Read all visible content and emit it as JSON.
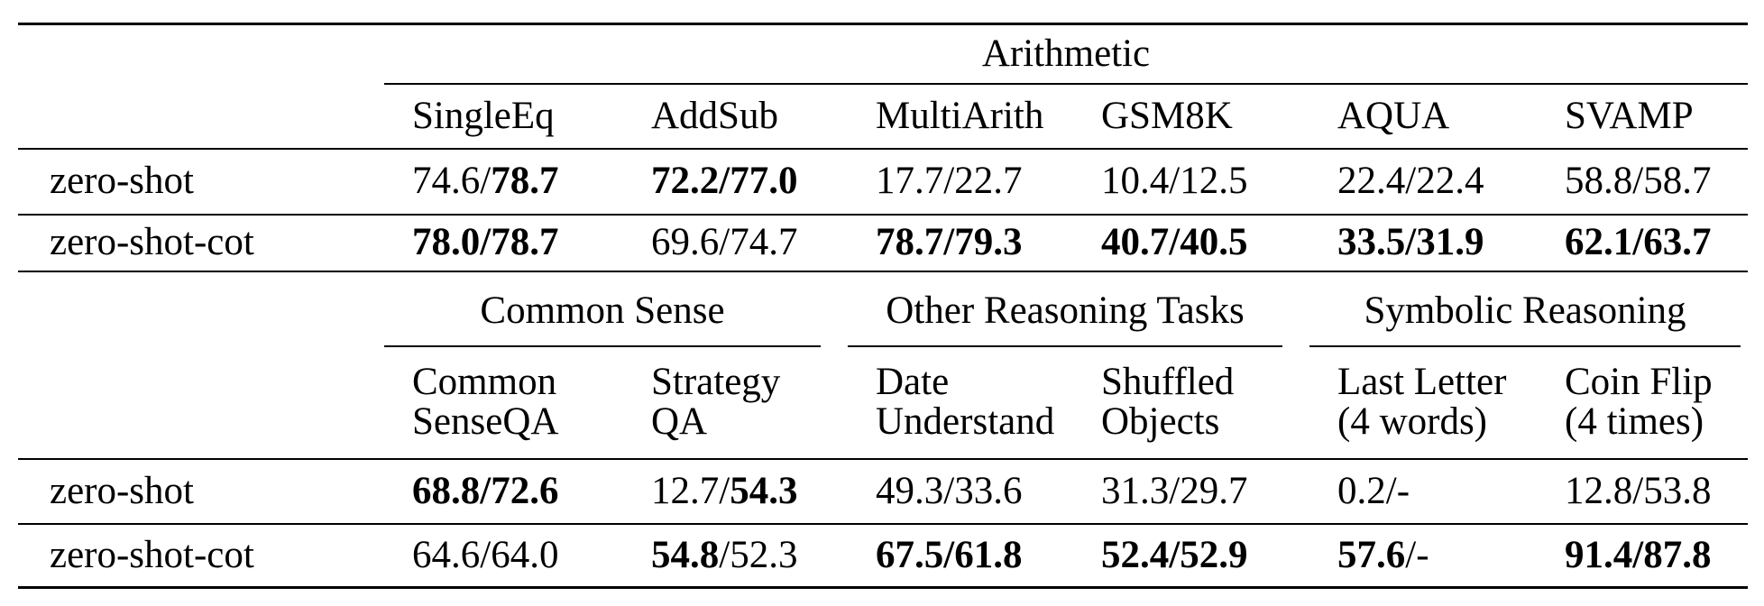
{
  "colors": {
    "background": "#ffffff",
    "text": "#000000",
    "rule": "#000000"
  },
  "table": {
    "top": {
      "group": "Arithmetic",
      "columns": [
        "SingleEq",
        "AddSub",
        "MultiArith",
        "GSM8K",
        "AQUA",
        "SVAMP"
      ],
      "rows": [
        {
          "label": "zero-shot",
          "cells": [
            {
              "left": "74.6",
              "left_bold": false,
              "sep": "/",
              "right": "78.7",
              "right_bold": true
            },
            {
              "left": "72.2",
              "left_bold": true,
              "sep": "/",
              "right": "77.0",
              "right_bold": true
            },
            {
              "left": "17.7",
              "left_bold": false,
              "sep": "/",
              "right": "22.7",
              "right_bold": false
            },
            {
              "left": "10.4",
              "left_bold": false,
              "sep": "/",
              "right": "12.5",
              "right_bold": false
            },
            {
              "left": "22.4",
              "left_bold": false,
              "sep": "/",
              "right": "22.4",
              "right_bold": false
            },
            {
              "left": "58.8",
              "left_bold": false,
              "sep": "/",
              "right": "58.7",
              "right_bold": false
            }
          ]
        },
        {
          "label": "zero-shot-cot",
          "cells": [
            {
              "left": "78.0",
              "left_bold": true,
              "sep": "/",
              "right": "78.7",
              "right_bold": true
            },
            {
              "left": "69.6",
              "left_bold": false,
              "sep": "/",
              "right": "74.7",
              "right_bold": false
            },
            {
              "left": "78.7",
              "left_bold": true,
              "sep": "/",
              "right": "79.3",
              "right_bold": true
            },
            {
              "left": "40.7",
              "left_bold": true,
              "sep": "/",
              "right": "40.5",
              "right_bold": true
            },
            {
              "left": "33.5",
              "left_bold": true,
              "sep": "/",
              "right": "31.9",
              "right_bold": true
            },
            {
              "left": "62.1",
              "left_bold": true,
              "sep": "/",
              "right": "63.7",
              "right_bold": true
            }
          ]
        }
      ]
    },
    "bottom": {
      "groups": [
        "Common Sense",
        "Other Reasoning Tasks",
        "Symbolic Reasoning"
      ],
      "columns": [
        {
          "line1": "Common",
          "line2": "SenseQA"
        },
        {
          "line1": "Strategy",
          "line2": "QA"
        },
        {
          "line1": "Date",
          "line2": "Understand"
        },
        {
          "line1": "Shuffled",
          "line2": "Objects"
        },
        {
          "line1": "Last Letter",
          "line2": "(4 words)"
        },
        {
          "line1": "Coin Flip",
          "line2": "(4 times)"
        }
      ],
      "rows": [
        {
          "label": "zero-shot",
          "cells": [
            {
              "left": "68.8",
              "left_bold": true,
              "sep": "/",
              "right": "72.6",
              "right_bold": true
            },
            {
              "left": "12.7",
              "left_bold": false,
              "sep": "/",
              "right": "54.3",
              "right_bold": true
            },
            {
              "left": "49.3",
              "left_bold": false,
              "sep": "/",
              "right": "33.6",
              "right_bold": false
            },
            {
              "left": "31.3",
              "left_bold": false,
              "sep": "/",
              "right": "29.7",
              "right_bold": false
            },
            {
              "left": "0.2",
              "left_bold": false,
              "sep": "/",
              "right": "-",
              "right_bold": false
            },
            {
              "left": "12.8",
              "left_bold": false,
              "sep": "/",
              "right": "53.8",
              "right_bold": false
            }
          ]
        },
        {
          "label": "zero-shot-cot",
          "cells": [
            {
              "left": "64.6",
              "left_bold": false,
              "sep": "/",
              "right": "64.0",
              "right_bold": false
            },
            {
              "left": "54.8",
              "left_bold": true,
              "sep": "/",
              "right": "52.3",
              "right_bold": false
            },
            {
              "left": "67.5",
              "left_bold": true,
              "sep": "/",
              "right": "61.8",
              "right_bold": true
            },
            {
              "left": "52.4",
              "left_bold": true,
              "sep": "/",
              "right": "52.9",
              "right_bold": true
            },
            {
              "left": "57.6",
              "left_bold": true,
              "sep": "/",
              "right": "-",
              "right_bold": false
            },
            {
              "left": "91.4",
              "left_bold": true,
              "sep": "/",
              "right": "87.8",
              "right_bold": true
            }
          ]
        }
      ]
    }
  }
}
